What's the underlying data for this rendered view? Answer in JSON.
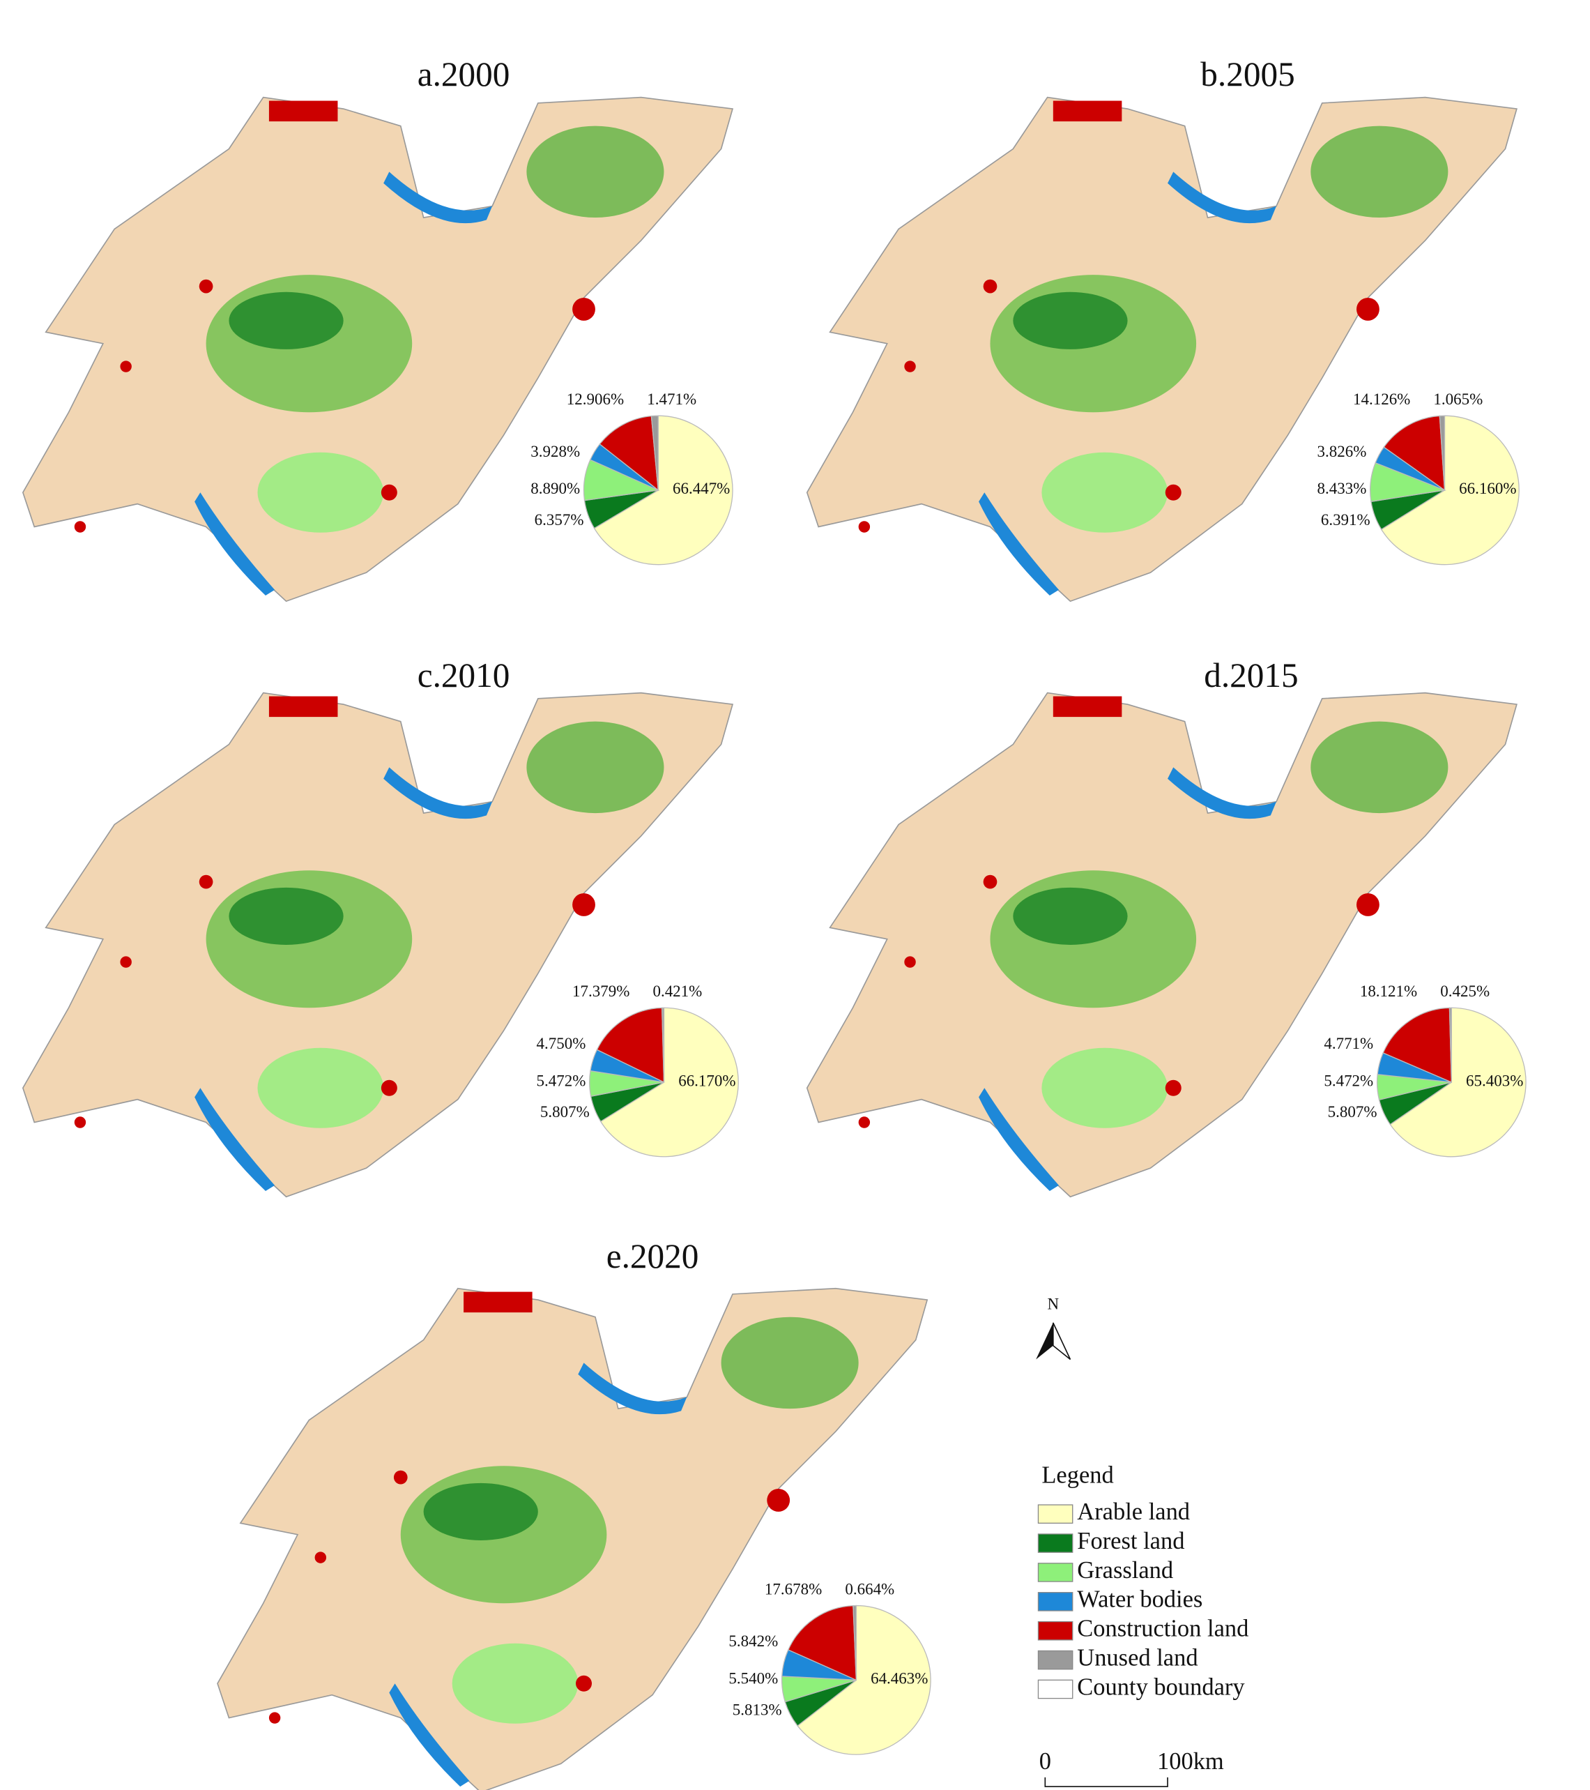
{
  "chart_data": [
    {
      "type": "pie",
      "title": "a.2000",
      "values": [
        66.447,
        6.357,
        8.89,
        3.928,
        12.906,
        1.471
      ],
      "value_labels": [
        "66.447%",
        "6.357%",
        "8.890%",
        "3.928%",
        "12.906%",
        "1.471%"
      ]
    },
    {
      "type": "pie",
      "title": "b.2005",
      "values": [
        66.16,
        6.391,
        8.433,
        3.826,
        14.126,
        1.065
      ],
      "value_labels": [
        "66.160%",
        "6.391%",
        "8.433%",
        "3.826%",
        "14.126%",
        "1.065%"
      ]
    },
    {
      "type": "pie",
      "title": "c.2010",
      "values": [
        66.17,
        5.807,
        5.472,
        4.75,
        17.379,
        0.421
      ],
      "value_labels": [
        "66.170%",
        "5.807%",
        "5.472%",
        "4.750%",
        "17.379%",
        "0.421%"
      ]
    },
    {
      "type": "pie",
      "title": "d.2015",
      "values": [
        65.403,
        5.807,
        5.472,
        4.771,
        18.121,
        0.425
      ],
      "value_labels": [
        "65.403%",
        "5.807%",
        "5.472%",
        "4.771%",
        "18.121%",
        "0.425%"
      ]
    },
    {
      "type": "pie",
      "title": "e.2020",
      "values": [
        64.463,
        5.813,
        5.54,
        5.842,
        17.678,
        0.664
      ],
      "value_labels": [
        "64.463%",
        "5.813%",
        "5.540%",
        "5.842%",
        "17.678%",
        "0.664%"
      ]
    }
  ],
  "legend": {
    "title": "Legend",
    "items": [
      {
        "name": "Arable land",
        "color": "#ffffbe"
      },
      {
        "name": "Forest land",
        "color": "#0a7a1e"
      },
      {
        "name": "Grassland",
        "color": "#8ef07a"
      },
      {
        "name": "Water bodies",
        "color": "#1e88d8"
      },
      {
        "name": "Construction land",
        "color": "#cc0000"
      },
      {
        "name": "Unused land",
        "color": "#9a9a9a"
      },
      {
        "name": "County boundary",
        "color": "#ffffff"
      }
    ]
  },
  "north": "N",
  "scale_bar": {
    "start": "0",
    "end": "100km"
  }
}
